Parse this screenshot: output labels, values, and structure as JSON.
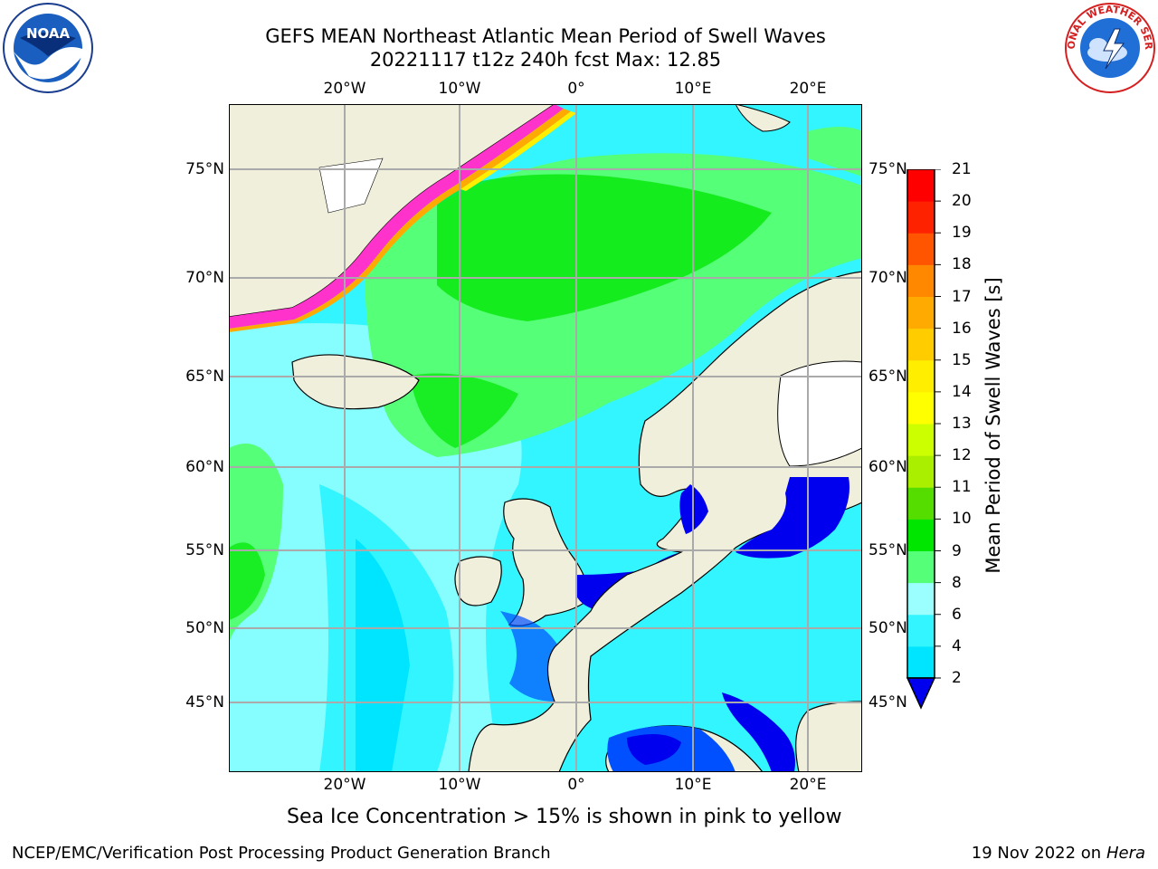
{
  "header": {
    "title": "GEFS MEAN Northeast Atlantic Mean Period of Swell Waves",
    "subtitle": "20221117 t12z 240h fcst   Max: 12.85"
  },
  "axes": {
    "lon_labels": [
      "20°W",
      "10°W",
      "0°",
      "10°E",
      "20°E"
    ],
    "lat_labels": [
      "75°N",
      "70°N",
      "65°N",
      "60°N",
      "55°N",
      "50°N",
      "45°N"
    ]
  },
  "colorbar": {
    "label": "Mean Period of Swell Waves [s]",
    "ticks": [
      "2",
      "4",
      "6",
      "8",
      "9",
      "10",
      "11",
      "12",
      "13",
      "14",
      "15",
      "16",
      "17",
      "18",
      "19",
      "20",
      "21"
    ],
    "colors": [
      "#0050ff",
      "#00e5ff",
      "#33f5ff",
      "#9bffff",
      "#55ff77",
      "#00e600",
      "#55dd00",
      "#aaee00",
      "#ccff00",
      "#ffff00",
      "#ffee00",
      "#ffcc00",
      "#ffaa00",
      "#ff8800",
      "#ff5500",
      "#ff2200",
      "#ff0000"
    ]
  },
  "note": "Sea Ice Concentration > 15% is shown in pink to yellow",
  "footer": {
    "org": "NCEP/EMC/Verification Post Processing Product Generation Branch",
    "date": "19 Nov 2022 on",
    "host": "Hera"
  },
  "logos": {
    "noaa_text": "NOAA",
    "nws_text": "NATIONAL WEATHER SERVICE"
  }
}
